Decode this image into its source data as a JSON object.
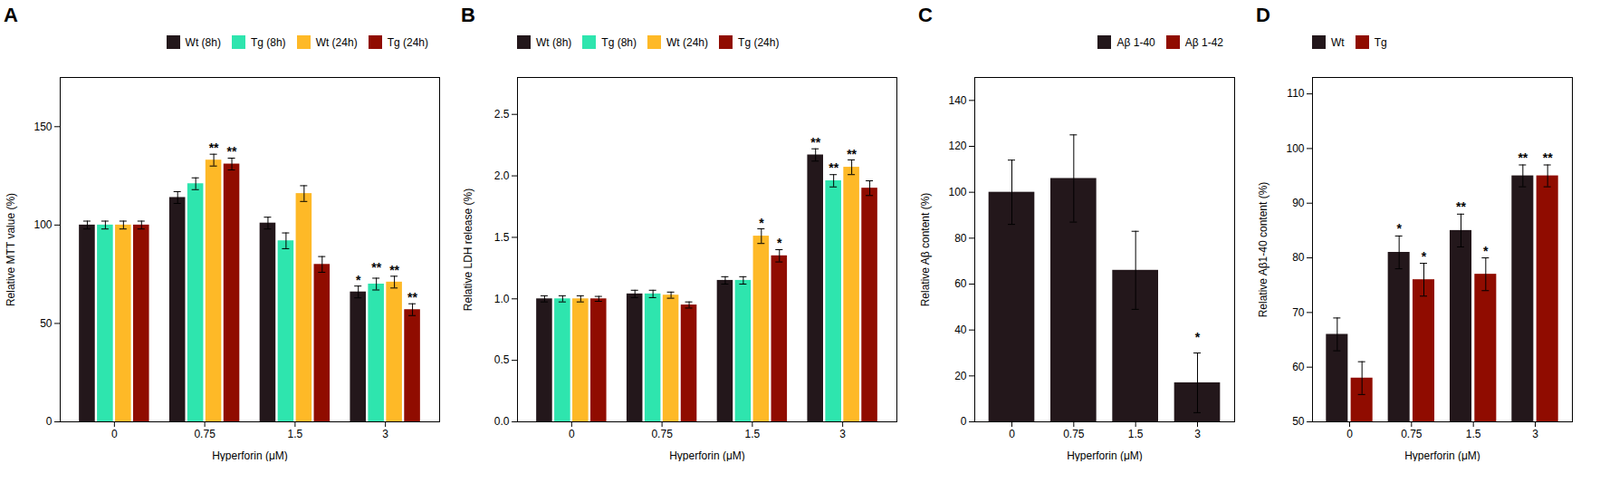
{
  "chart_data": [
    {
      "type": "bar",
      "title": "A",
      "xlabel": "Hyperforin (μM)",
      "ylabel": "Relative MTT value (%)",
      "categories": [
        "0",
        "0.75",
        "1.5",
        "3"
      ],
      "series": [
        {
          "name": "Wt (8h)",
          "values": [
            100,
            114,
            101,
            66
          ],
          "errors": [
            2,
            3,
            3,
            3
          ]
        },
        {
          "name": "Tg (8h)",
          "values": [
            100,
            121,
            92,
            70
          ],
          "errors": [
            2,
            3,
            4,
            3
          ]
        },
        {
          "name": "Wt (24h)",
          "values": [
            100,
            133,
            116,
            71
          ],
          "errors": [
            2,
            3,
            4,
            3
          ]
        },
        {
          "name": "Tg (24h)",
          "values": [
            100,
            131,
            80,
            57
          ],
          "errors": [
            2,
            3,
            4,
            3
          ]
        }
      ],
      "ylim": [
        0,
        175
      ],
      "yticks": [
        0,
        50,
        100,
        150
      ],
      "legend": "upper right",
      "grid": false,
      "annotations": [
        {
          "text": "**",
          "category": "0.75",
          "series": "Wt (24h)",
          "y": 137
        },
        {
          "text": "**",
          "category": "0.75",
          "series": "Tg (24h)",
          "y": 135
        },
        {
          "text": "*",
          "category": "3",
          "series": "Wt (8h)",
          "y": 70
        },
        {
          "text": "**",
          "category": "3",
          "series": "Tg (8h)",
          "y": 76
        },
        {
          "text": "**",
          "category": "3",
          "series": "Wt (24h)",
          "y": 75
        },
        {
          "text": "**",
          "category": "3",
          "series": "Tg (24h)",
          "y": 61
        }
      ]
    },
    {
      "type": "bar",
      "title": "B",
      "xlabel": "Hyperforin (μM)",
      "ylabel": "Relative LDH release (%)",
      "categories": [
        "0",
        "0.75",
        "1.5",
        "3"
      ],
      "series": [
        {
          "name": "Wt (8h)",
          "values": [
            1.0,
            1.04,
            1.15,
            2.17
          ],
          "errors": [
            0.025,
            0.03,
            0.03,
            0.05
          ]
        },
        {
          "name": "Tg (8h)",
          "values": [
            1.0,
            1.04,
            1.15,
            1.96
          ],
          "errors": [
            0.025,
            0.03,
            0.03,
            0.05
          ]
        },
        {
          "name": "Wt (24h)",
          "values": [
            1.0,
            1.03,
            1.51,
            2.07
          ],
          "errors": [
            0.025,
            0.025,
            0.06,
            0.06
          ]
        },
        {
          "name": "Tg (24h)",
          "values": [
            1.0,
            0.95,
            1.35,
            1.9
          ],
          "errors": [
            0.02,
            0.025,
            0.05,
            0.06
          ]
        }
      ],
      "ylim": [
        0,
        2.8
      ],
      "yticks": [
        {
          "value": 0,
          "label": "0.0"
        },
        0.5,
        {
          "value": 1,
          "label": "1.0"
        },
        1.5,
        {
          "value": 2,
          "label": "2.0"
        },
        2.5
      ],
      "legend": "upper left",
      "grid": false,
      "annotations": [
        {
          "text": "*",
          "category": "1.5",
          "series": "Wt (24h)",
          "y": 1.58
        },
        {
          "text": "*",
          "category": "1.5",
          "series": "Tg (24h)",
          "y": 1.42
        },
        {
          "text": "**",
          "category": "3",
          "series": "Wt (8h)",
          "y": 2.24
        },
        {
          "text": "**",
          "category": "3",
          "series": "Tg (8h)",
          "y": 2.03
        },
        {
          "text": "**",
          "category": "3",
          "series": "Wt (24h)",
          "y": 2.14
        }
      ]
    },
    {
      "type": "bar",
      "title": "C",
      "xlabel": "Hyperforin (μM)",
      "ylabel": "Relative Aβ content (%)",
      "categories": [
        "0",
        "0.75",
        "1.5",
        "3"
      ],
      "series": [
        {
          "name": "Aβ 1-40",
          "values": [
            100,
            106,
            66,
            17
          ],
          "errors": [
            14,
            19,
            17,
            13
          ]
        },
        {
          "name": "Aβ 1-42",
          "values": [
            null,
            null,
            null,
            null
          ]
        }
      ],
      "ylim": [
        0,
        150
      ],
      "yticks": [
        0,
        20,
        40,
        60,
        80,
        100,
        120,
        140
      ],
      "legend": "upper right",
      "grid": false,
      "annotations": [
        {
          "text": "*",
          "category": "3",
          "series": "Aβ 1-40",
          "y": 35
        }
      ]
    },
    {
      "type": "bar",
      "title": "D",
      "xlabel": "Hyperforin (μM)",
      "ylabel": "Relative Aβ1-40 content (%)",
      "categories": [
        "0",
        "0.75",
        "1.5",
        "3"
      ],
      "series": [
        {
          "name": "Wt",
          "values": [
            66,
            81,
            85,
            95
          ],
          "errors": [
            3,
            3,
            3,
            2
          ]
        },
        {
          "name": "Tg",
          "values": [
            58,
            76,
            77,
            95
          ],
          "errors": [
            3,
            3,
            3,
            2
          ]
        }
      ],
      "ylim": [
        50,
        113
      ],
      "yticks": [
        50,
        60,
        70,
        80,
        90,
        100,
        110
      ],
      "legend": "upper left",
      "grid": false,
      "annotations": [
        {
          "text": "*",
          "category": "0.75",
          "series": "Wt",
          "y": 84.5
        },
        {
          "text": "*",
          "category": "0.75",
          "series": "Tg",
          "y": 79.5
        },
        {
          "text": "**",
          "category": "1.5",
          "series": "Wt",
          "y": 88.5
        },
        {
          "text": "*",
          "category": "1.5",
          "series": "Tg",
          "y": 80.5
        },
        {
          "text": "**",
          "category": "3",
          "series": "Wt",
          "y": 97.5
        },
        {
          "text": "**",
          "category": "3",
          "series": "Tg",
          "y": 97.5
        }
      ]
    }
  ]
}
